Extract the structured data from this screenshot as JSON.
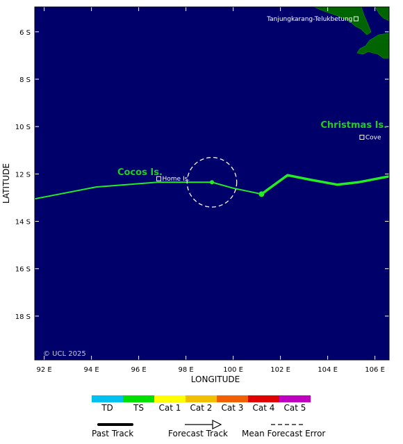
{
  "map": {
    "lon_range": [
      91.6,
      106.6
    ],
    "lat_range": [
      -4.95,
      -19.85
    ],
    "lon_ticks": [
      {
        "value": 92,
        "label": "92 E"
      },
      {
        "value": 94,
        "label": "94 E"
      },
      {
        "value": 96,
        "label": "96 E"
      },
      {
        "value": 98,
        "label": "98 E"
      },
      {
        "value": 100,
        "label": "100 E"
      },
      {
        "value": 102,
        "label": "102 E"
      },
      {
        "value": 104,
        "label": "104 E"
      },
      {
        "value": 106,
        "label": "106 E"
      }
    ],
    "lat_ticks": [
      {
        "value": -6,
        "label": "6 S"
      },
      {
        "value": -8,
        "label": "8 S"
      },
      {
        "value": -10,
        "label": "10 S"
      },
      {
        "value": -12,
        "label": "12 S"
      },
      {
        "value": -14,
        "label": "14 S"
      },
      {
        "value": -16,
        "label": "16 S"
      },
      {
        "value": -18,
        "label": "18 S"
      }
    ],
    "xlabel": "LONGITUDE",
    "ylabel": "LATITUDE",
    "copyright": "© UCL 2025",
    "colors": {
      "ocean": "#00006b",
      "land": "#006400",
      "track": "#22ee22"
    }
  },
  "places": [
    {
      "name": "Tanjungkarang-Telukbetung",
      "lon": 105.2,
      "lat": -5.45
    },
    {
      "name": "Home Is.",
      "lon": 96.85,
      "lat": -12.2
    },
    {
      "name": "Cove",
      "lon": 105.45,
      "lat": -10.45
    }
  ],
  "islands": [
    {
      "name": "Cocos Is.",
      "lon": 95.1,
      "lat": -12.05
    },
    {
      "name": "Christmas Is.",
      "lon": 103.7,
      "lat": -10.05
    }
  ],
  "track": {
    "past": [
      {
        "lon": 91.6,
        "lat": -13.05
      },
      {
        "lon": 94.2,
        "lat": -12.55
      },
      {
        "lon": 96.8,
        "lat": -12.35
      },
      {
        "lon": 99.1,
        "lat": -12.35
      },
      {
        "lon": 100.0,
        "lat": -12.6
      },
      {
        "lon": 101.2,
        "lat": -12.85
      }
    ],
    "forecast": [
      {
        "lon": 101.2,
        "lat": -12.85
      },
      {
        "lon": 102.3,
        "lat": -12.05
      },
      {
        "lon": 103.3,
        "lat": -12.25
      },
      {
        "lon": 104.4,
        "lat": -12.45
      },
      {
        "lon": 105.3,
        "lat": -12.35
      },
      {
        "lon": 106.6,
        "lat": -12.1
      }
    ],
    "current_position": {
      "lon": 101.2,
      "lat": -12.85
    },
    "marker": {
      "lon": 99.1,
      "lat": -12.35
    },
    "error_circle": {
      "lon": 99.1,
      "lat": -12.35,
      "radius_deg": 1.05
    }
  },
  "legend": {
    "categories": [
      {
        "label": "TD",
        "color": "#00c0f0"
      },
      {
        "label": "TS",
        "color": "#00e000"
      },
      {
        "label": "Cat 1",
        "color": "#ffff00"
      },
      {
        "label": "Cat 2",
        "color": "#f0c000"
      },
      {
        "label": "Cat 3",
        "color": "#f06000"
      },
      {
        "label": "Cat 4",
        "color": "#e00000"
      },
      {
        "label": "Cat 5",
        "color": "#c000c0"
      }
    ],
    "past_track": "Past Track",
    "forecast_track": "Forecast Track",
    "mean_error": "Mean Forecast Error"
  }
}
